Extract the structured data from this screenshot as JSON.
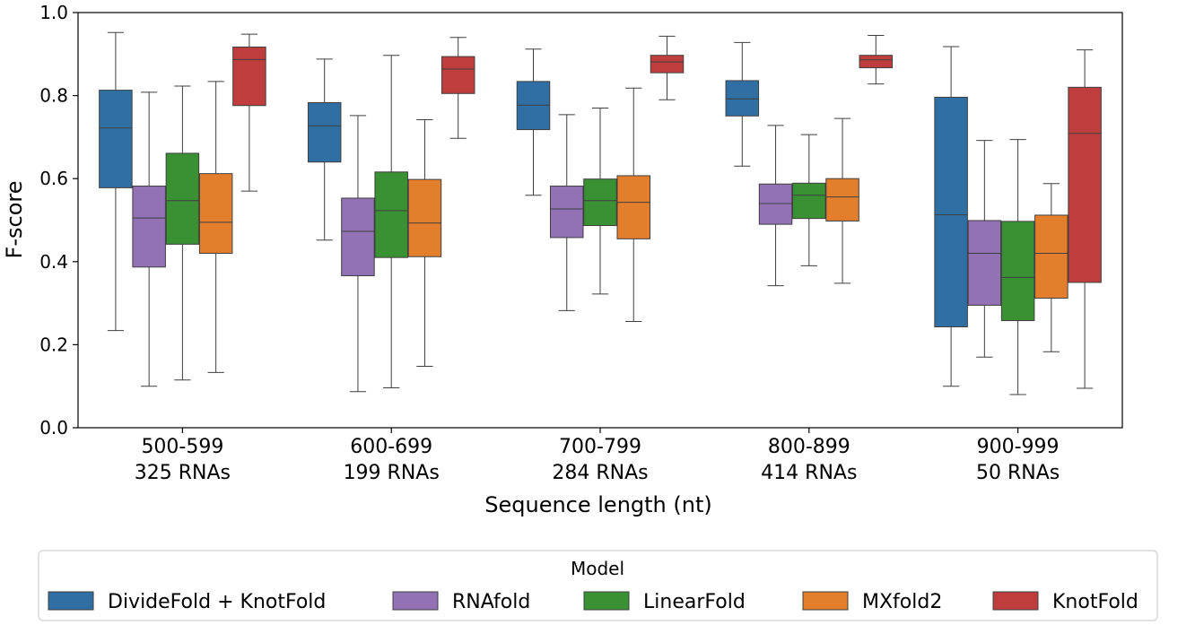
{
  "chart_data": {
    "type": "box",
    "ylabel": "F-score",
    "xlabel": "Sequence length (nt)",
    "ylim": [
      0.0,
      1.0
    ],
    "yticks": [
      "0.0",
      "0.2",
      "0.4",
      "0.6",
      "0.8",
      "1.0"
    ],
    "grid": false,
    "categories": [
      {
        "line1": "500-599",
        "line2": "325 RNAs"
      },
      {
        "line1": "600-699",
        "line2": "199 RNAs"
      },
      {
        "line1": "700-799",
        "line2": "284 RNAs"
      },
      {
        "line1": "800-899",
        "line2": "414 RNAs"
      },
      {
        "line1": "900-999",
        "line2": "50 RNAs"
      }
    ],
    "legend": {
      "title": "Model",
      "position": "bottom-center"
    },
    "series": [
      {
        "name": "DivideFold + KnotFold",
        "color": "#2f6fa3",
        "boxes": [
          {
            "whislo": 0.234,
            "q1": 0.578,
            "med": 0.722,
            "q3": 0.813,
            "whishi": 0.952
          },
          {
            "whislo": 0.452,
            "q1": 0.64,
            "med": 0.727,
            "q3": 0.783,
            "whishi": 0.888
          },
          {
            "whislo": 0.56,
            "q1": 0.718,
            "med": 0.777,
            "q3": 0.834,
            "whishi": 0.912
          },
          {
            "whislo": 0.63,
            "q1": 0.751,
            "med": 0.792,
            "q3": 0.836,
            "whishi": 0.928
          },
          {
            "whislo": 0.1,
            "q1": 0.243,
            "med": 0.513,
            "q3": 0.796,
            "whishi": 0.918
          }
        ]
      },
      {
        "name": "RNAfold",
        "color": "#9271b5",
        "boxes": [
          {
            "whislo": 0.1,
            "q1": 0.387,
            "med": 0.505,
            "q3": 0.582,
            "whishi": 0.808
          },
          {
            "whislo": 0.087,
            "q1": 0.366,
            "med": 0.473,
            "q3": 0.553,
            "whishi": 0.752
          },
          {
            "whislo": 0.282,
            "q1": 0.458,
            "med": 0.527,
            "q3": 0.582,
            "whishi": 0.754
          },
          {
            "whislo": 0.342,
            "q1": 0.49,
            "med": 0.54,
            "q3": 0.587,
            "whishi": 0.728
          },
          {
            "whislo": 0.17,
            "q1": 0.295,
            "med": 0.42,
            "q3": 0.499,
            "whishi": 0.692
          }
        ]
      },
      {
        "name": "LinearFold",
        "color": "#3a9134",
        "boxes": [
          {
            "whislo": 0.115,
            "q1": 0.442,
            "med": 0.547,
            "q3": 0.661,
            "whishi": 0.823
          },
          {
            "whislo": 0.096,
            "q1": 0.41,
            "med": 0.523,
            "q3": 0.616,
            "whishi": 0.897
          },
          {
            "whislo": 0.322,
            "q1": 0.487,
            "med": 0.547,
            "q3": 0.599,
            "whishi": 0.77
          },
          {
            "whislo": 0.39,
            "q1": 0.504,
            "med": 0.56,
            "q3": 0.589,
            "whishi": 0.706
          },
          {
            "whislo": 0.08,
            "q1": 0.258,
            "med": 0.362,
            "q3": 0.497,
            "whishi": 0.694
          }
        ]
      },
      {
        "name": "MXfold2",
        "color": "#e37f2c",
        "boxes": [
          {
            "whislo": 0.133,
            "q1": 0.42,
            "med": 0.495,
            "q3": 0.612,
            "whishi": 0.834
          },
          {
            "whislo": 0.148,
            "q1": 0.412,
            "med": 0.493,
            "q3": 0.598,
            "whishi": 0.742
          },
          {
            "whislo": 0.256,
            "q1": 0.455,
            "med": 0.543,
            "q3": 0.607,
            "whishi": 0.818
          },
          {
            "whislo": 0.348,
            "q1": 0.498,
            "med": 0.556,
            "q3": 0.6,
            "whishi": 0.745
          },
          {
            "whislo": 0.183,
            "q1": 0.312,
            "med": 0.42,
            "q3": 0.512,
            "whishi": 0.588
          }
        ]
      },
      {
        "name": "KnotFold",
        "color": "#c03d3e",
        "boxes": [
          {
            "whislo": 0.57,
            "q1": 0.776,
            "med": 0.887,
            "q3": 0.917,
            "whishi": 0.948
          },
          {
            "whislo": 0.697,
            "q1": 0.805,
            "med": 0.864,
            "q3": 0.894,
            "whishi": 0.94
          },
          {
            "whislo": 0.79,
            "q1": 0.855,
            "med": 0.881,
            "q3": 0.897,
            "whishi": 0.943
          },
          {
            "whislo": 0.828,
            "q1": 0.867,
            "med": 0.886,
            "q3": 0.897,
            "whishi": 0.945
          },
          {
            "whislo": 0.095,
            "q1": 0.35,
            "med": 0.709,
            "q3": 0.82,
            "whishi": 0.91
          }
        ]
      }
    ]
  }
}
